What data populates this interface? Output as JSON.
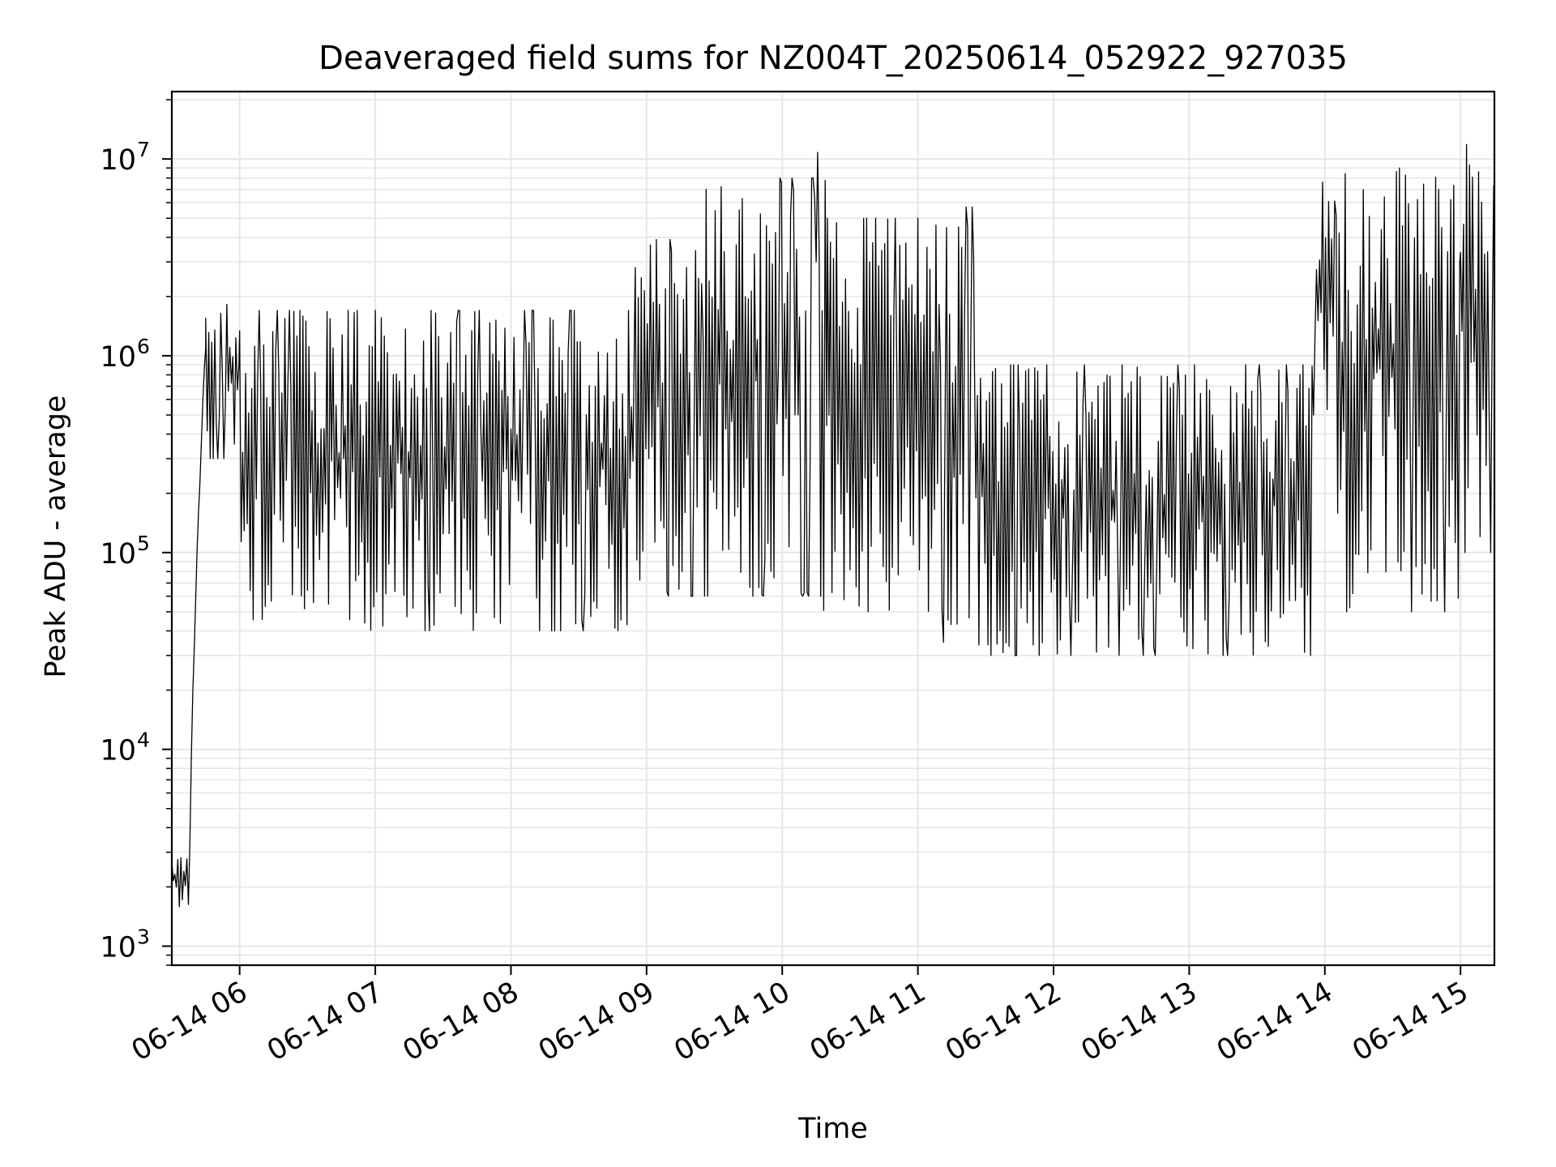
{
  "chart_data": {
    "type": "line",
    "title": "Deaveraged field sums for NZ004T_20250614_052922_927035",
    "xlabel": "Time",
    "ylabel": "Peak ADU - average",
    "yscale": "log",
    "xlim": [
      "2025-06-14 05:30",
      "2025-06-14 15:15"
    ],
    "ylim": [
      800,
      22000000
    ],
    "grid": true,
    "line_color": "#000000",
    "grid_color": "#e6e6e6",
    "x_ticks": [
      {
        "value": "2025-06-14 06:00",
        "label": "06-14 06"
      },
      {
        "value": "2025-06-14 07:00",
        "label": "06-14 07"
      },
      {
        "value": "2025-06-14 08:00",
        "label": "06-14 08"
      },
      {
        "value": "2025-06-14 09:00",
        "label": "06-14 09"
      },
      {
        "value": "2025-06-14 10:00",
        "label": "06-14 10"
      },
      {
        "value": "2025-06-14 11:00",
        "label": "06-14 11"
      },
      {
        "value": "2025-06-14 12:00",
        "label": "06-14 12"
      },
      {
        "value": "2025-06-14 13:00",
        "label": "06-14 13"
      },
      {
        "value": "2025-06-14 14:00",
        "label": "06-14 14"
      },
      {
        "value": "2025-06-14 15:00",
        "label": "06-14 15"
      }
    ],
    "y_ticks": [
      {
        "value": 1000,
        "base": "10",
        "exp": "3"
      },
      {
        "value": 10000,
        "base": "10",
        "exp": "4"
      },
      {
        "value": 100000,
        "base": "10",
        "exp": "5"
      },
      {
        "value": 1000000,
        "base": "10",
        "exp": "6"
      },
      {
        "value": 10000000,
        "base": "10",
        "exp": "7"
      }
    ],
    "series": [
      {
        "segments": [
          {
            "start": "2025-06-14 05:30",
            "end": "2025-06-14 05:38",
            "low": 1500,
            "high": 2900
          },
          {
            "start": "2025-06-14 05:38",
            "end": "2025-06-14 05:45",
            "low": 3000,
            "high": 1200000
          },
          {
            "start": "2025-06-14 05:45",
            "end": "2025-06-14 06:00",
            "low": 300000,
            "high": 2100000
          },
          {
            "start": "2025-06-14 06:00",
            "end": "2025-06-14 08:55",
            "low": 40000,
            "high": 1700000
          },
          {
            "start": "2025-06-14 08:55",
            "end": "2025-06-14 09:25",
            "low": 60000,
            "high": 3900000
          },
          {
            "start": "2025-06-14 09:25",
            "end": "2025-06-14 10:15",
            "low": 60000,
            "high": 8000000
          },
          {
            "start": "2025-06-14 10:15",
            "end": "2025-06-14 10:20",
            "low": 40000,
            "high": 10800000
          },
          {
            "start": "2025-06-14 10:20",
            "end": "2025-06-14 11:10",
            "low": 50000,
            "high": 5000000
          },
          {
            "start": "2025-06-14 11:10",
            "end": "2025-06-14 11:25",
            "low": 35000,
            "high": 5700000
          },
          {
            "start": "2025-06-14 11:25",
            "end": "2025-06-14 13:55",
            "low": 30000,
            "high": 900000
          },
          {
            "start": "2025-06-14 13:55",
            "end": "2025-06-14 14:05",
            "low": 500000,
            "high": 8000000
          },
          {
            "start": "2025-06-14 14:05",
            "end": "2025-06-14 15:00",
            "low": 50000,
            "high": 9000000
          },
          {
            "start": "2025-06-14 15:00",
            "end": "2025-06-14 15:15",
            "low": 100000,
            "high": 14000000
          }
        ]
      }
    ]
  }
}
